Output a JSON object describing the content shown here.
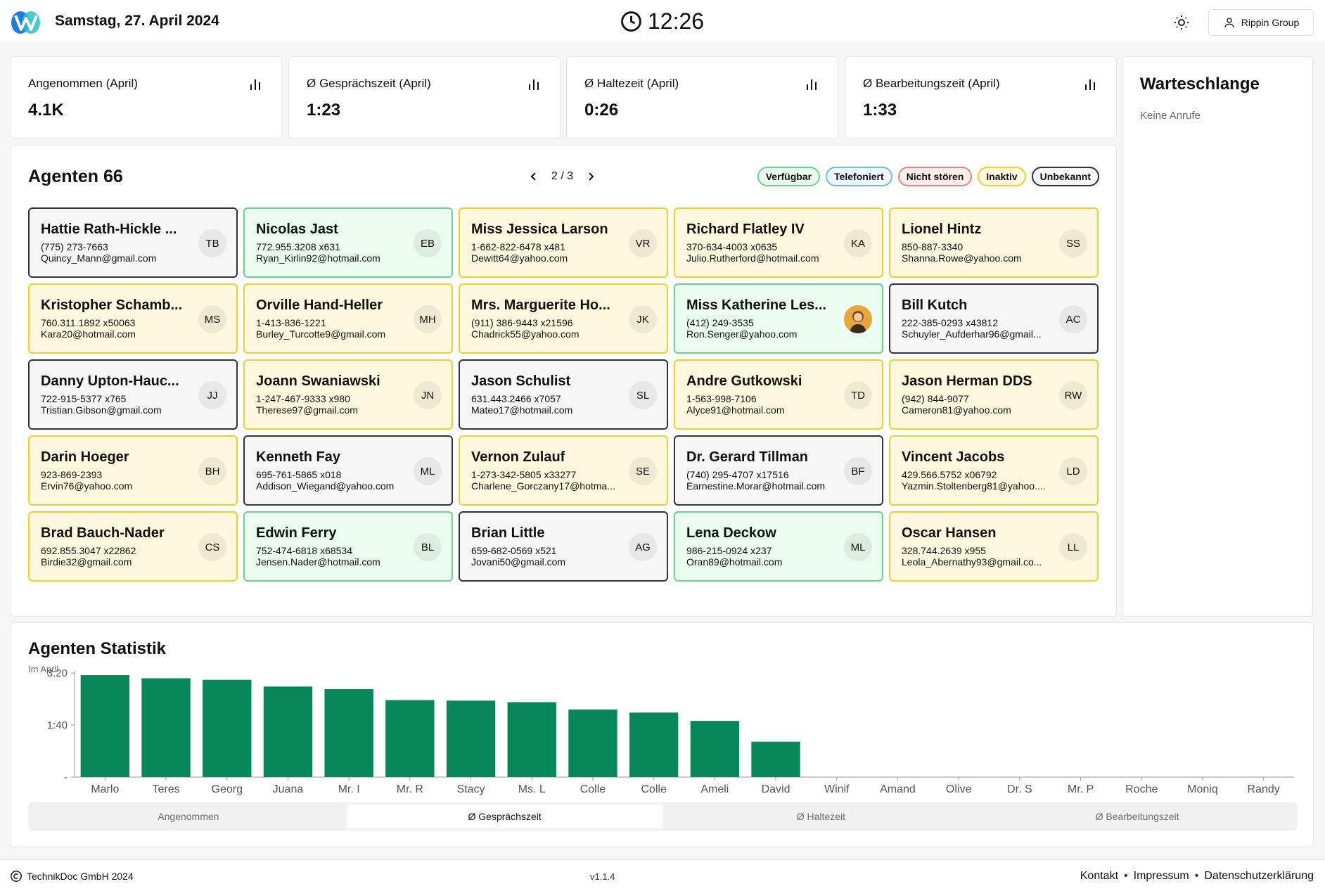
{
  "header": {
    "date": "Samstag, 27. April 2024",
    "time": "12:26",
    "account_label": "Rippin Group"
  },
  "kpis": [
    {
      "label": "Angenommen (April)",
      "value": "4.1K"
    },
    {
      "label": "Ø Gesprächszeit (April)",
      "value": "1:23"
    },
    {
      "label": "Ø Haltezeit (April)",
      "value": "0:26"
    },
    {
      "label": "Ø Bearbeitungszeit (April)",
      "value": "1:33"
    }
  ],
  "queue": {
    "title": "Warteschlange",
    "empty_text": "Keine Anrufe"
  },
  "agents": {
    "title": "Agenten 66",
    "page": "2 / 3",
    "legend": [
      {
        "label": "Verfügbar",
        "status": "green"
      },
      {
        "label": "Telefoniert",
        "status": "blue"
      },
      {
        "label": "Nicht stören",
        "status": "red"
      },
      {
        "label": "Inaktiv",
        "status": "yellow"
      },
      {
        "label": "Unbekannt",
        "status": "dark"
      }
    ],
    "status_colors": {
      "green": "#6ad48e",
      "blue": "#76b6f2",
      "red": "#f0807f",
      "yellow": "#f3ce2d",
      "dark": "#333333"
    },
    "list": [
      {
        "name": "Hattie Rath-Hickle ...",
        "phone": "(775) 273-7663",
        "email": "Quincy_Mann@gmail.com",
        "initials": "TB",
        "status": "dark"
      },
      {
        "name": "Nicolas Jast",
        "phone": "772.955.3208 x631",
        "email": "Ryan_Kirlin92@hotmail.com",
        "initials": "EB",
        "status": "green"
      },
      {
        "name": "Miss Jessica Larson",
        "phone": "1-662-822-6478 x481",
        "email": "Dewitt64@yahoo.com",
        "initials": "VR",
        "status": "yellow"
      },
      {
        "name": "Richard Flatley IV",
        "phone": "370-634-4003 x0635",
        "email": "Julio.Rutherford@hotmail.com",
        "initials": "KA",
        "status": "yellow"
      },
      {
        "name": "Lionel Hintz",
        "phone": "850-887-3340",
        "email": "Shanna.Rowe@yahoo.com",
        "initials": "SS",
        "status": "yellow"
      },
      {
        "name": "Kristopher Schamb...",
        "phone": "760.311.1892 x50063",
        "email": "Kara20@hotmail.com",
        "initials": "MS",
        "status": "yellow"
      },
      {
        "name": "Orville Hand-Heller",
        "phone": "1-413-836-1221",
        "email": "Burley_Turcotte9@gmail.com",
        "initials": "MH",
        "status": "yellow"
      },
      {
        "name": "Mrs. Marguerite Ho...",
        "phone": "(911) 386-9443 x21596",
        "email": "Chadrick55@yahoo.com",
        "initials": "JK",
        "status": "yellow"
      },
      {
        "name": "Miss Katherine Les...",
        "phone": "(412) 249-3535",
        "email": "Ron.Senger@yahoo.com",
        "initials": "",
        "status": "green",
        "photo": true
      },
      {
        "name": "Bill Kutch",
        "phone": "222-385-0293 x43812",
        "email": "Schuyler_Aufderhar96@gmail...",
        "initials": "AC",
        "status": "dark"
      },
      {
        "name": "Danny Upton-Hauc...",
        "phone": "722-915-5377 x765",
        "email": "Tristian.Gibson@gmail.com",
        "initials": "JJ",
        "status": "dark"
      },
      {
        "name": "Joann Swaniawski",
        "phone": "1-247-467-9333 x980",
        "email": "Therese97@gmail.com",
        "initials": "JN",
        "status": "yellow"
      },
      {
        "name": "Jason Schulist",
        "phone": "631.443.2466 x7057",
        "email": "Mateo17@hotmail.com",
        "initials": "SL",
        "status": "dark"
      },
      {
        "name": "Andre Gutkowski",
        "phone": "1-563-998-7106",
        "email": "Alyce91@hotmail.com",
        "initials": "TD",
        "status": "yellow"
      },
      {
        "name": "Jason Herman DDS",
        "phone": "(942) 844-9077",
        "email": "Cameron81@yahoo.com",
        "initials": "RW",
        "status": "yellow"
      },
      {
        "name": "Darin Hoeger",
        "phone": "923-869-2393",
        "email": "Ervin76@yahoo.com",
        "initials": "BH",
        "status": "yellow"
      },
      {
        "name": "Kenneth Fay",
        "phone": "695-761-5865 x018",
        "email": "Addison_Wiegand@yahoo.com",
        "initials": "ML",
        "status": "dark"
      },
      {
        "name": "Vernon Zulauf",
        "phone": "1-273-342-5805 x33277",
        "email": "Charlene_Gorczany17@hotma...",
        "initials": "SE",
        "status": "yellow"
      },
      {
        "name": "Dr. Gerard Tillman",
        "phone": "(740) 295-4707 x17516",
        "email": "Earnestine.Morar@hotmail.com",
        "initials": "BF",
        "status": "dark"
      },
      {
        "name": "Vincent Jacobs",
        "phone": "429.566.5752 x06792",
        "email": "Yazmin.Stoltenberg81@yahoo....",
        "initials": "LD",
        "status": "yellow"
      },
      {
        "name": "Brad Bauch-Nader",
        "phone": "692.855.3047 x22862",
        "email": "Birdie32@gmail.com",
        "initials": "CS",
        "status": "yellow"
      },
      {
        "name": "Edwin Ferry",
        "phone": "752-474-6818 x68534",
        "email": "Jensen.Nader@hotmail.com",
        "initials": "BL",
        "status": "green"
      },
      {
        "name": "Brian Little",
        "phone": "659-682-0569 x521",
        "email": "Jovani50@gmail.com",
        "initials": "AG",
        "status": "dark"
      },
      {
        "name": "Lena Deckow",
        "phone": "986-215-0924 x237",
        "email": "Oran89@hotmail.com",
        "initials": "ML",
        "status": "green"
      },
      {
        "name": "Oscar Hansen",
        "phone": "328.744.2639 x955",
        "email": "Leola_Abernathy93@gmail.co...",
        "initials": "LL",
        "status": "yellow"
      }
    ]
  },
  "stats": {
    "title": "Agenten Statistik",
    "subtitle": "Im April",
    "tabs": [
      "Angenommen",
      "Ø Gesprächszeit",
      "Ø Haltezeit",
      "Ø Bearbeitungszeit"
    ],
    "active_tab": 1
  },
  "chart_data": {
    "type": "bar",
    "title": "",
    "xlabel": "",
    "ylabel": "",
    "unit": "seconds",
    "bar_color": "#07875a",
    "categories": [
      "Marlo",
      "Teres",
      "Georg",
      "Juana",
      "Mr. I",
      "Mr. R",
      "Stacy",
      "Ms. L",
      "Colle",
      "Colle",
      "Ameli",
      "David",
      "Winif",
      "Amand",
      "Olive",
      "Dr. S",
      "Mr. P",
      "Roche",
      "Moniq",
      "Randy"
    ],
    "values": [
      196,
      190,
      187,
      174,
      169,
      148,
      147,
      144,
      130,
      124,
      108,
      68,
      0,
      0,
      0,
      0,
      0,
      0,
      0,
      0
    ],
    "ylim": [
      0,
      215
    ],
    "yticks": [
      0,
      100,
      200
    ],
    "ytick_labels": [
      "-",
      "1:40",
      "3:20"
    ]
  },
  "footer": {
    "copyright": "TechnikDoc GmbH 2024",
    "version": "v1.1.4",
    "links": [
      "Kontakt",
      "Impressum",
      "Datenschutzerklärung"
    ],
    "separator": "•"
  }
}
